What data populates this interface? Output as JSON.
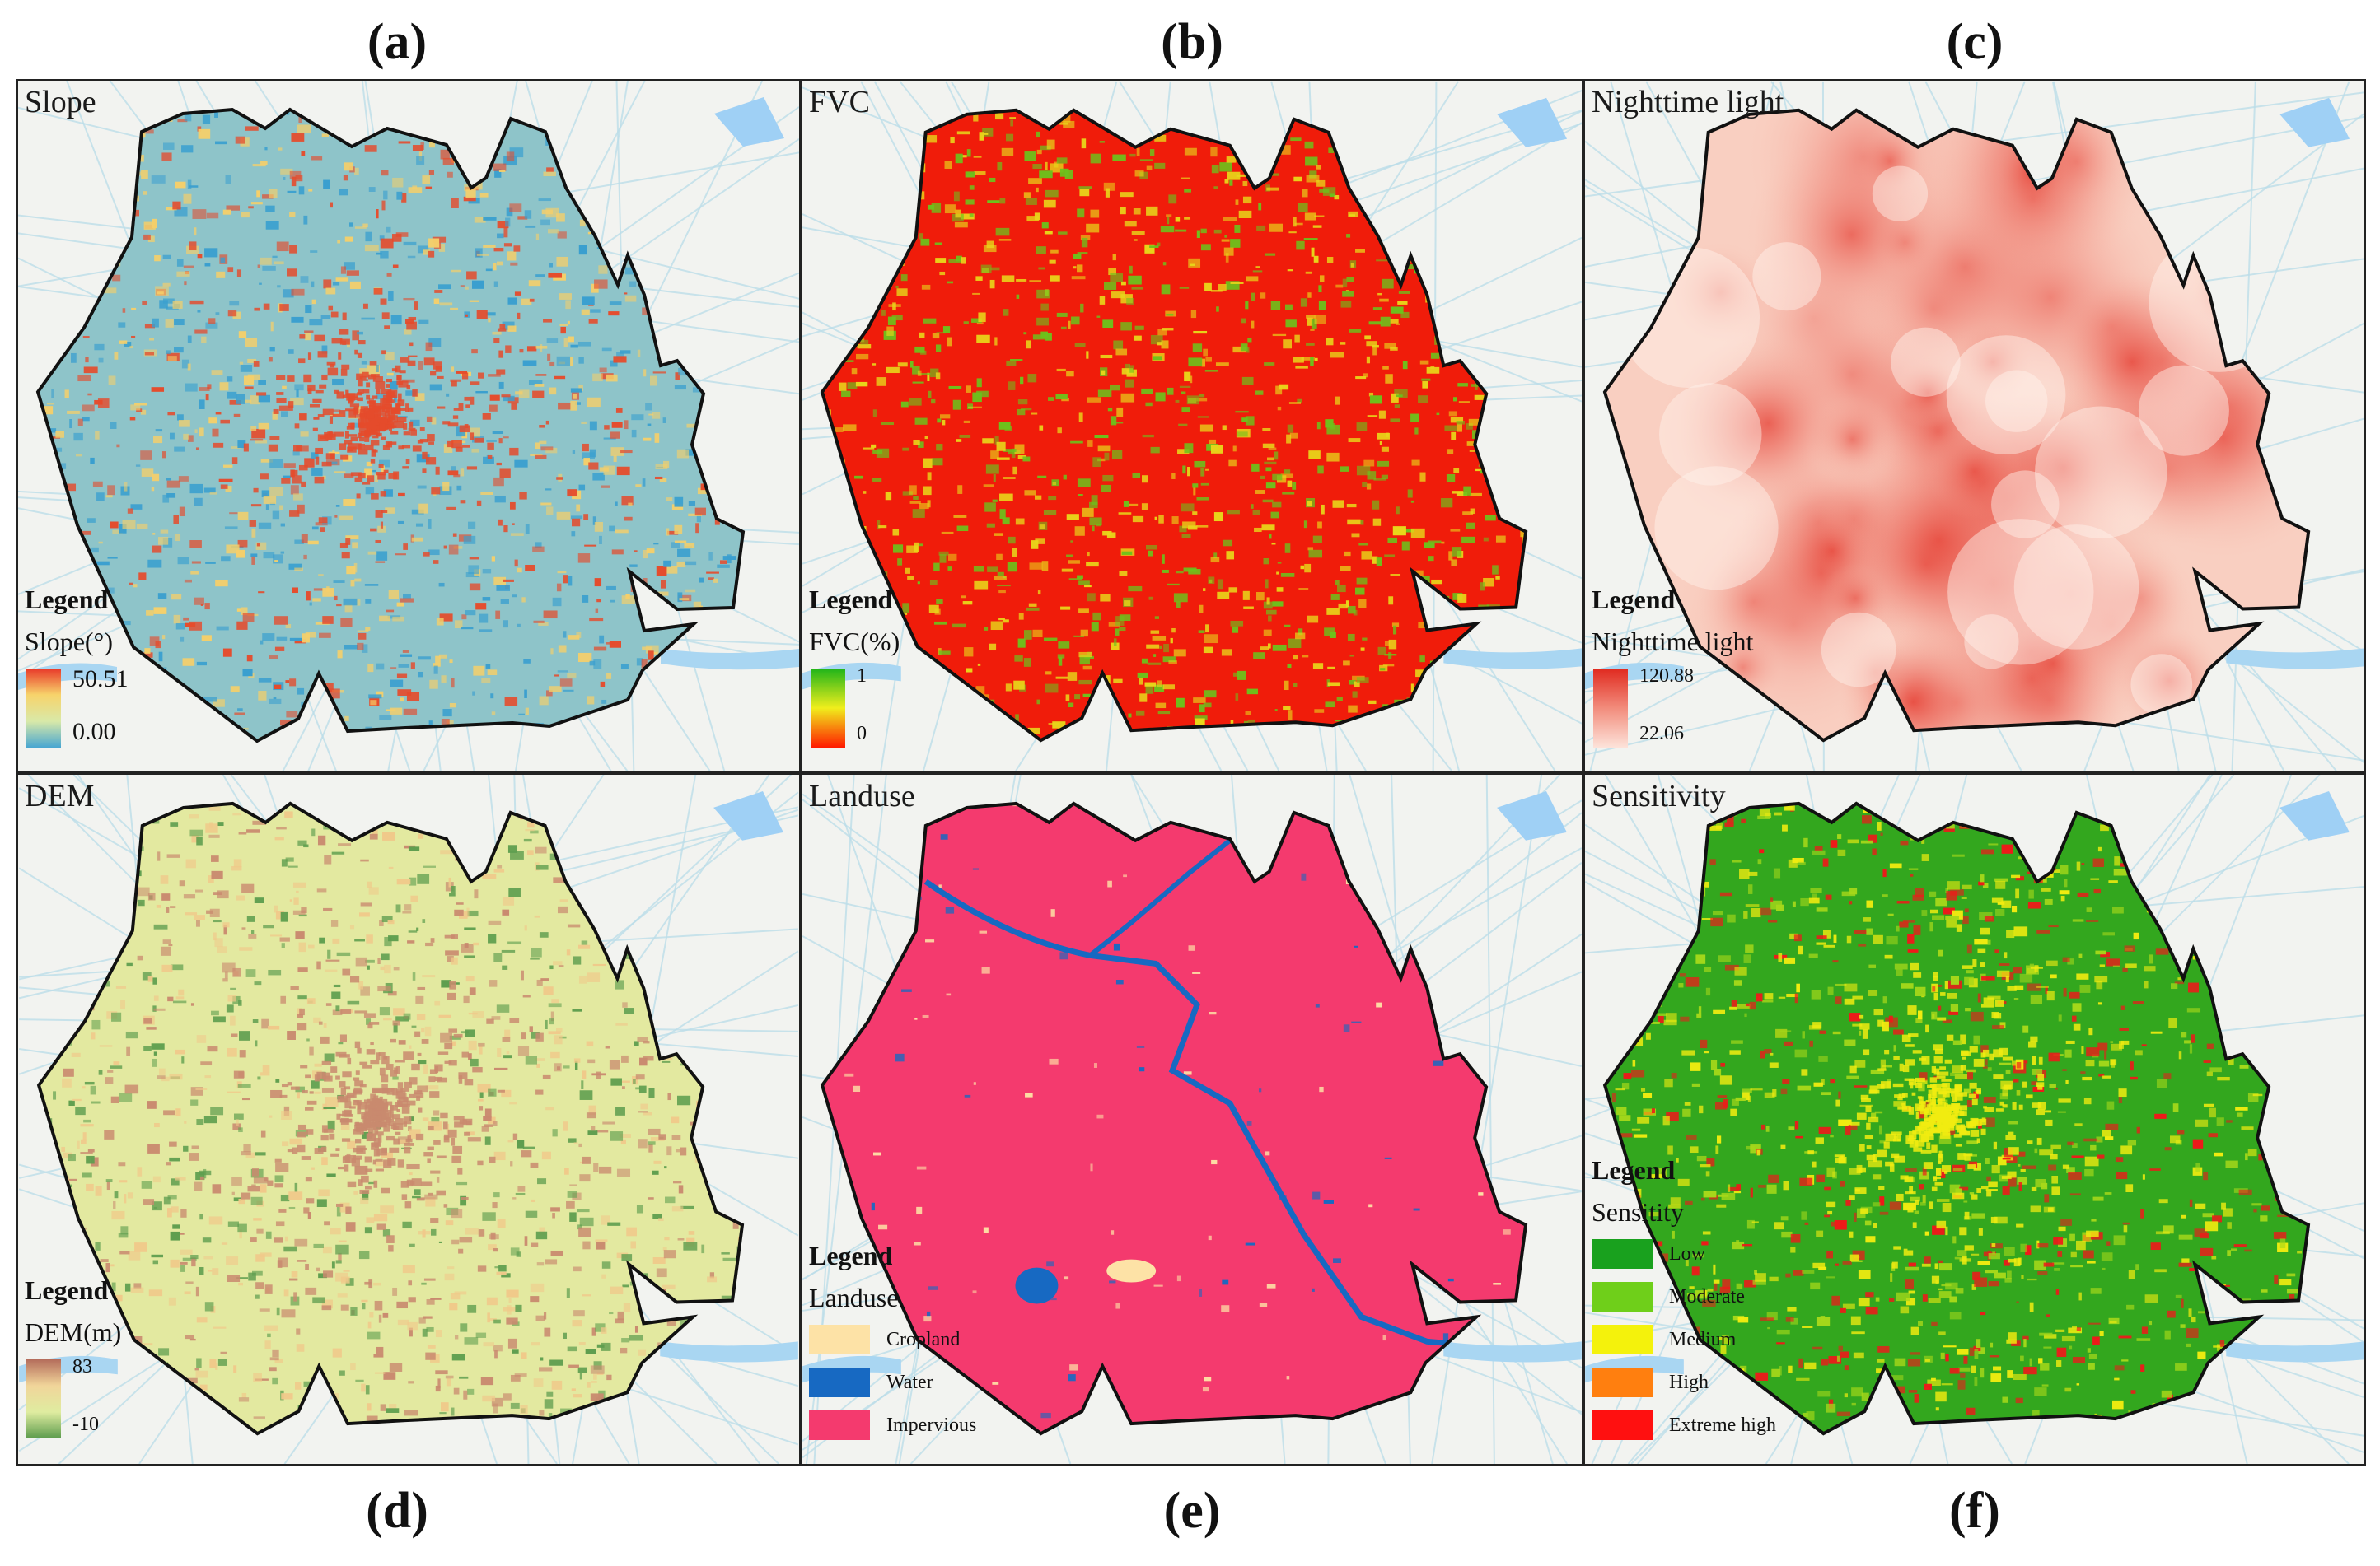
{
  "panel_labels": [
    "(a)",
    "(b)",
    "(c)",
    "(d)",
    "(e)",
    "(f)"
  ],
  "panels": [
    {
      "id": "a",
      "title": "Slope",
      "legend": {
        "heading": "Legend",
        "subtitle": "Slope(°)",
        "max": "50.51",
        "min": "0.00",
        "gradient": [
          "#e8392a",
          "#f7d36b",
          "#d9e9a8",
          "#48a6d1"
        ]
      },
      "map_colors": {
        "base": "#8ec4c9",
        "speckle": [
          "#f5cf6a",
          "#e54b2c",
          "#3a9fcf"
        ]
      }
    },
    {
      "id": "b",
      "title": "FVC",
      "legend": {
        "heading": "Legend",
        "subtitle": "FVC(%)",
        "max": "1",
        "min": "0",
        "gradient": [
          "#1fb41a",
          "#f0ee1c",
          "#ff1a00"
        ]
      },
      "map_colors": {
        "base": "#f01c0a",
        "speckle": [
          "#6cc21c",
          "#e8d61a"
        ]
      }
    },
    {
      "id": "c",
      "title": "Nighttime light",
      "legend": {
        "heading": "Legend",
        "subtitle": "Nighttime light",
        "max": "120.88",
        "min": "22.06",
        "gradient": [
          "#e02a1f",
          "#f28c7c",
          "#fde3da"
        ]
      },
      "map_colors": {
        "base": "#f7b8a8",
        "speckle": [
          "#e43a2c",
          "#fbe2d8"
        ]
      }
    },
    {
      "id": "d",
      "title": "DEM",
      "legend": {
        "heading": "Legend",
        "subtitle": "DEM(m)",
        "max": "83",
        "min": "-10",
        "gradient": [
          "#b46d5b",
          "#f1d59a",
          "#dfeca0",
          "#5c9b4c"
        ]
      },
      "map_colors": {
        "base": "#e3e9a0",
        "speckle": [
          "#c98a6f",
          "#5f9e4f",
          "#f0c98a"
        ]
      }
    },
    {
      "id": "e",
      "title": "Landuse",
      "legend": {
        "heading": "Legend",
        "subtitle": "Landuse",
        "items": [
          {
            "label": "Cropland",
            "color": "#fde2a6"
          },
          {
            "label": "Water",
            "color": "#1769c2"
          },
          {
            "label": "Impervious",
            "color": "#f43a6e"
          }
        ]
      },
      "map_colors": {
        "base": "#f43a6e",
        "speckle": [
          "#1769c2",
          "#fde2a6"
        ]
      }
    },
    {
      "id": "f",
      "title": "Sensitivity",
      "legend": {
        "heading": "Legend",
        "subtitle": "Sensitity",
        "items": [
          {
            "label": "Low",
            "color": "#19a11e"
          },
          {
            "label": "Moderate",
            "color": "#6fcf1a"
          },
          {
            "label": "Medium",
            "color": "#f4f20c"
          },
          {
            "label": "High",
            "color": "#ff7f0f"
          },
          {
            "label": "Extreme high",
            "color": "#ff1010"
          }
        ]
      },
      "map_colors": {
        "base": "#33a71e",
        "speckle": [
          "#f1ec10",
          "#a6d81a",
          "#f0181a"
        ]
      }
    }
  ]
}
